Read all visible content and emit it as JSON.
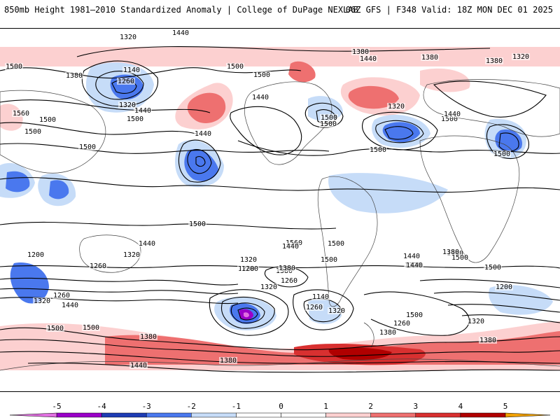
{
  "header": {
    "title_left": "850mb Height 1981–2010 Standardized Anomaly | College of DuPage NEXLAB",
    "title_right": "06Z GFS | F348 Valid: 18Z MON DEC 01 2025"
  },
  "colors": {
    "neg5": "#e070e0",
    "neg4": "#9a00c8",
    "neg3": "#1e3cb4",
    "neg2": "#4a78ee",
    "neg1": "#c6dcf8",
    "zero": "#ffffff",
    "pos1": "#fcd0d0",
    "pos2": "#ee7070",
    "pos3": "#d83030",
    "pos4": "#b00000",
    "pos5": "#f0a000",
    "contour": "#000000",
    "coast": "#444444"
  },
  "contour_labels": [
    "1440",
    "1440",
    "1320",
    "1500",
    "1380",
    "1140",
    "1260",
    "1320",
    "1440",
    "1500",
    "1560",
    "1500",
    "1500",
    "1500",
    "1440",
    "1500",
    "1500",
    "1500",
    "1380",
    "1440",
    "1500",
    "1440",
    "1380",
    "1320",
    "1380",
    "1320",
    "1440",
    "1500",
    "1500",
    "1500",
    "1500",
    "1500",
    "1500",
    "1560",
    "1380",
    "1440",
    "1440",
    "1320",
    "1200",
    "1260",
    "1320",
    "1260",
    "1200",
    "1380",
    "1500",
    "1440",
    "1380",
    "1320",
    "1260",
    "1200",
    "1320",
    "1380",
    "1440",
    "1260",
    "1140",
    "1260",
    "1320",
    "1380",
    "1500",
    "1500",
    "1500",
    "1260",
    "1320",
    "1440",
    "1380",
    "1380",
    "1500",
    "1320",
    "1440",
    "1380"
  ],
  "colorbar": {
    "ticks": [
      "-5",
      "-4",
      "-3",
      "-2",
      "-1",
      "0",
      "1",
      "2",
      "3",
      "4",
      "5"
    ]
  }
}
